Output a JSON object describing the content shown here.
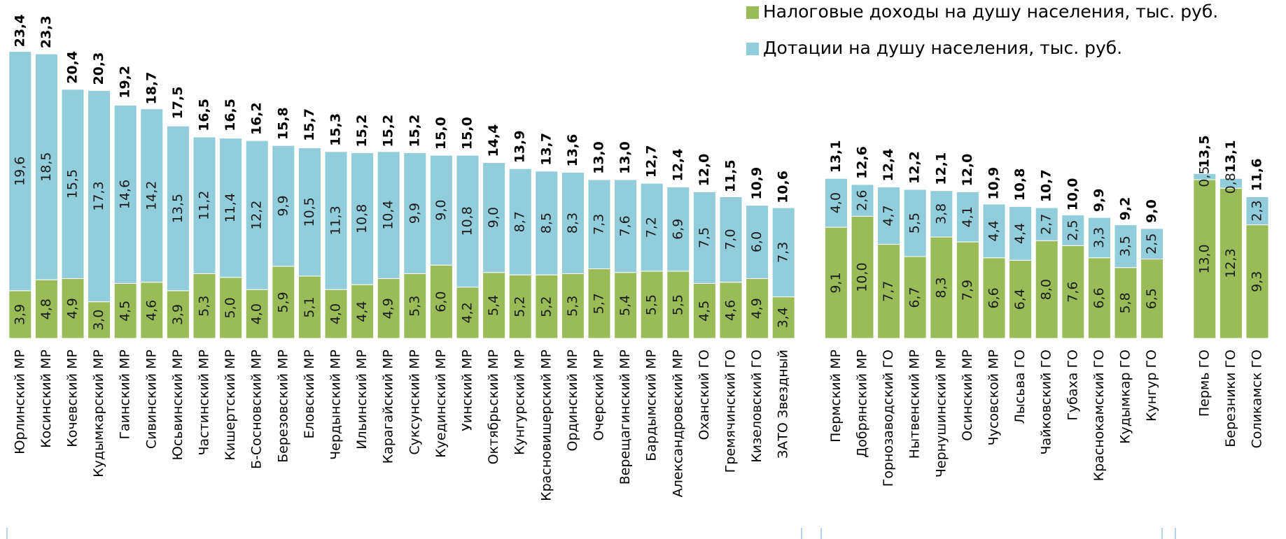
{
  "chart_data": {
    "type": "stacked_bar",
    "categories": [
      "Юрлинский МР",
      "Косинский МР",
      "Кочевский МР",
      "Кудымкарский МР",
      "Гаинский МР",
      "Сивинский МР",
      "Юсьвинский МР",
      "Частинский МР",
      "Кишертский МР",
      "Б-Сосновский МР",
      "Березовский МР",
      "Еловский МР",
      "Чердынский МР",
      "Ильинский МР",
      "Карагайский МР",
      "Суксунский МР",
      "Куединский МР",
      "Уинский МР",
      "Октябрьский МР",
      "Кунгурский МР",
      "Красновишерский МР",
      "Ординский МР",
      "Очерский МР",
      "Верещагинский МР",
      "Бардымский МР",
      "Александровский МР",
      "Оханский ГО",
      "Гремячинский ГО",
      "Кизеловский ГО",
      "ЗАТО Звездный",
      null,
      "Пермский МР",
      "Добрянский МР",
      "Горнозаводский ГО",
      "Нытвенский МР",
      "Чернушинский МР",
      "Осинский МР",
      "Чусовской МР",
      "Лысьва ГО",
      "Чайковский ГО",
      "Губаха ГО",
      "Краснокамский ГО",
      "Кудымкар ГО",
      "Кунгур ГО",
      null,
      "Пермь ГО",
      "Березники ГО",
      "Соликамск ГО"
    ],
    "series": [
      {
        "name": "Налоговые доходы на душу населения, тыс. руб.",
        "color": "#9bbb59",
        "values": [
          3.9,
          4.8,
          4.9,
          3.0,
          4.5,
          4.6,
          3.9,
          5.3,
          5.0,
          4.0,
          5.9,
          5.1,
          4.0,
          4.4,
          4.9,
          5.3,
          6.0,
          4.2,
          5.4,
          5.2,
          5.2,
          5.3,
          5.7,
          5.4,
          5.5,
          5.5,
          4.5,
          4.6,
          4.9,
          3.4,
          null,
          9.1,
          10.0,
          7.7,
          6.7,
          8.3,
          7.9,
          6.6,
          6.4,
          8.0,
          7.6,
          6.6,
          5.8,
          6.5,
          null,
          13.0,
          12.3,
          9.3
        ],
        "value_labels": [
          "3,9",
          "4,8",
          "4,9",
          "3,0",
          "4,5",
          "4,6",
          "3,9",
          "5,3",
          "5,0",
          "4,0",
          "5,9",
          "5,1",
          "4,0",
          "4,4",
          "4,9",
          "5,3",
          "6,0",
          "4,2",
          "5,4",
          "5,2",
          "5,2",
          "5,3",
          "5,7",
          "5,4",
          "5,5",
          "5,5",
          "4,5",
          "4,6",
          "4,9",
          "3,4",
          null,
          "9,1",
          "10,0",
          "7,7",
          "6,7",
          "8,3",
          "7,9",
          "6,6",
          "6,4",
          "8,0",
          "7,6",
          "6,6",
          "5,8",
          "6,5",
          null,
          "13,0",
          "12,3",
          "9,3"
        ]
      },
      {
        "name": "Дотации на душу населения, тыс. руб.",
        "color": "#92cddc",
        "values": [
          19.6,
          18.5,
          15.5,
          17.3,
          14.6,
          14.2,
          13.5,
          11.2,
          11.4,
          12.2,
          9.9,
          10.5,
          11.3,
          10.8,
          10.4,
          9.9,
          9.0,
          10.8,
          9.0,
          8.7,
          8.5,
          8.3,
          7.3,
          7.6,
          7.2,
          6.9,
          7.5,
          7.0,
          6.0,
          7.3,
          null,
          4.0,
          2.6,
          4.7,
          5.5,
          3.8,
          4.1,
          4.4,
          4.4,
          2.7,
          2.5,
          3.3,
          3.5,
          2.5,
          null,
          0.5,
          0.8,
          2.3
        ],
        "value_labels": [
          "19,6",
          "18,5",
          "15,5",
          "17,3",
          "14,6",
          "14,2",
          "13,5",
          "11,2",
          "11,4",
          "12,2",
          "9,9",
          "10,5",
          "11,3",
          "10,8",
          "10,4",
          "9,9",
          "9,0",
          "10,8",
          "9,0",
          "8,7",
          "8,5",
          "8,3",
          "7,3",
          "7,6",
          "7,2",
          "6,9",
          "7,5",
          "7,0",
          "6,0",
          "7,3",
          null,
          "4,0",
          "2,6",
          "4,7",
          "5,5",
          "3,8",
          "4,1",
          "4,4",
          "4,4",
          "2,7",
          "2,5",
          "3,3",
          "3,5",
          "2,5",
          null,
          "0,5",
          "0,8",
          "2,3"
        ]
      }
    ],
    "totals": {
      "values": [
        23.4,
        23.3,
        20.4,
        20.3,
        19.2,
        18.7,
        17.5,
        16.5,
        16.5,
        16.2,
        15.8,
        15.7,
        15.3,
        15.2,
        15.2,
        15.2,
        15.0,
        15.0,
        14.4,
        13.9,
        13.7,
        13.6,
        13.0,
        13.0,
        12.7,
        12.4,
        12.0,
        11.5,
        10.9,
        10.6,
        null,
        13.1,
        12.6,
        12.4,
        12.2,
        12.1,
        12.0,
        10.9,
        10.8,
        10.7,
        10.0,
        9.9,
        9.2,
        9.0,
        null,
        13.5,
        13.1,
        11.6
      ],
      "value_labels": [
        "23,4",
        "23,3",
        "20,4",
        "20,3",
        "19,2",
        "18,7",
        "17,5",
        "16,5",
        "16,5",
        "16,2",
        "15,8",
        "15,7",
        "15,3",
        "15,2",
        "15,2",
        "15,2",
        "15,0",
        "15,0",
        "14,4",
        "13,9",
        "13,7",
        "13,6",
        "13,0",
        "13,0",
        "12,7",
        "12,4",
        "12,0",
        "11,5",
        "10,9",
        "10,6",
        null,
        "13,1",
        "12,6",
        "12,4",
        "12,2",
        "12,1",
        "12,0",
        "10,9",
        "10,8",
        "10,7",
        "10,0",
        "9,9",
        "9,2",
        "9,0",
        null,
        "13,5",
        "13,1",
        "11,6"
      ]
    },
    "ylim": [
      0,
      26
    ],
    "legend": "top-right"
  }
}
